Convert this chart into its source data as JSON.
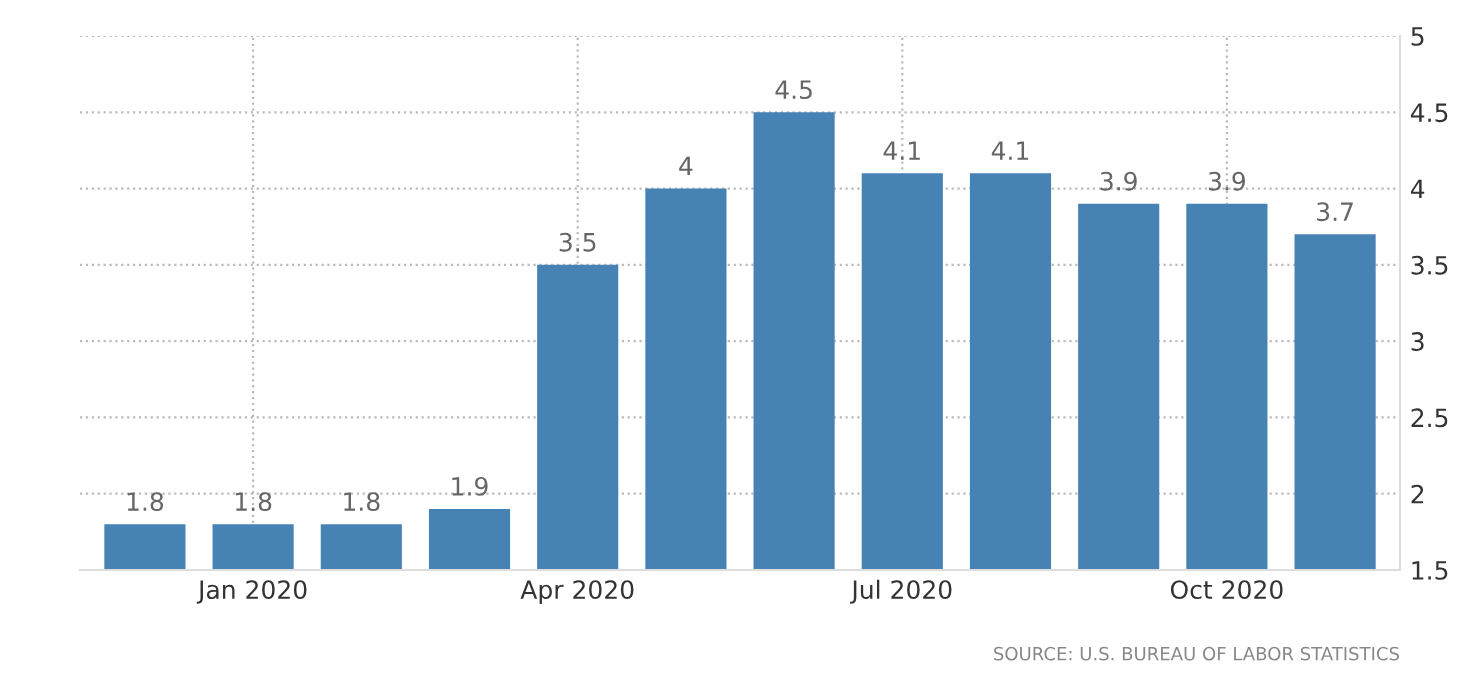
{
  "chart_data": {
    "type": "bar",
    "categories": [
      null,
      "Jan 2020",
      null,
      null,
      "Apr 2020",
      null,
      null,
      "Jul 2020",
      null,
      null,
      "Oct 2020",
      null
    ],
    "values": [
      1.8,
      1.8,
      1.8,
      1.9,
      3.5,
      4,
      4.5,
      4.1,
      4.1,
      3.9,
      3.9,
      3.7
    ],
    "color": "#4682b4",
    "ylim": [
      1.5,
      5
    ],
    "yticks": [
      1.5,
      2,
      2.5,
      3,
      3.5,
      4,
      4.5,
      5
    ],
    "grid": true,
    "data_labels": true,
    "annotations": [
      "SOURCE: U.S. BUREAU OF LABOR STATISTICS"
    ]
  }
}
